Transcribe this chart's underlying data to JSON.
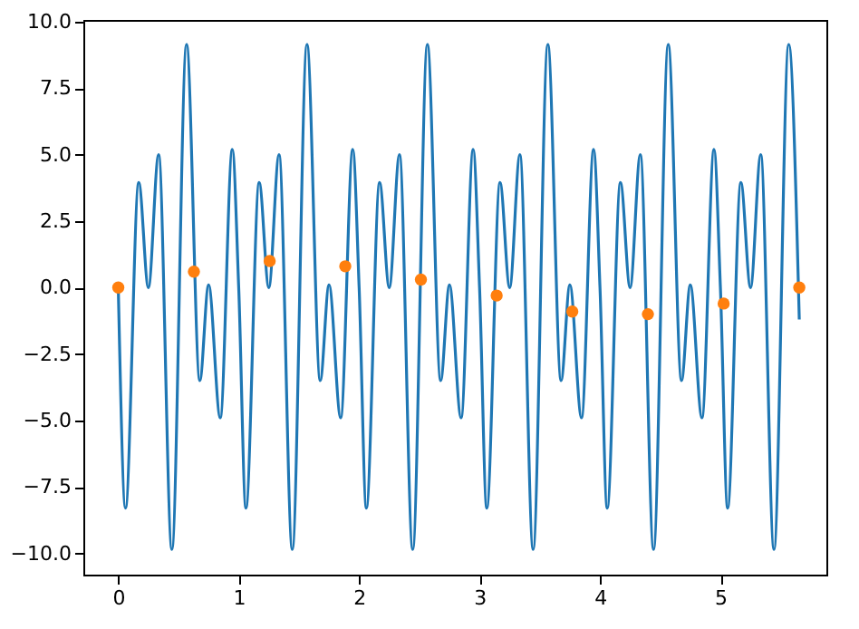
{
  "chart_data": {
    "type": "line",
    "xlim": [
      -0.29,
      5.88
    ],
    "ylim": [
      -10.8,
      10.07
    ],
    "xticks": [
      0,
      1,
      2,
      3,
      4,
      5
    ],
    "yticks": [
      {
        "value": -10,
        "label": "−10.0"
      },
      {
        "value": -7.5,
        "label": "−7.5"
      },
      {
        "value": -5,
        "label": "−5.0"
      },
      {
        "value": -2.5,
        "label": "−2.5"
      },
      {
        "value": 0,
        "label": "0.0"
      },
      {
        "value": 2.5,
        "label": "2.5"
      },
      {
        "value": 5,
        "label": "5.0"
      },
      {
        "value": 7.5,
        "label": "7.5"
      },
      {
        "value": 10,
        "label": "10.0"
      }
    ],
    "grid": false,
    "series": [
      {
        "color": "#1f77b4",
        "line_style": "solid",
        "marker": "none",
        "x": [
          0,
          0.06,
          0.17,
          0.25,
          0.335,
          0.445,
          0.567,
          0.677,
          0.75,
          0.847,
          0.947,
          1,
          1.06,
          1.17,
          1.25,
          1.335,
          1.445,
          1.567,
          1.677,
          1.75,
          1.847,
          1.947,
          2,
          2.06,
          2.17,
          2.25,
          2.335,
          2.445,
          2.567,
          2.677,
          2.75,
          2.847,
          2.947,
          3,
          3.06,
          3.17,
          3.25,
          3.335,
          3.445,
          3.567,
          3.677,
          3.75,
          3.847,
          3.947,
          4,
          4.06,
          4.17,
          4.25,
          4.335,
          4.445,
          4.567,
          4.677,
          4.75,
          4.847,
          4.947,
          5,
          5.06,
          5.17,
          5.25,
          5.335,
          5.445,
          5.567,
          5.655
        ],
        "values": [
          0,
          -8.3,
          3.95,
          0.0,
          5.0,
          -9.85,
          9.15,
          -3.5,
          0.1,
          -4.9,
          5.2,
          0,
          -8.3,
          3.95,
          0.0,
          5.0,
          -9.85,
          9.15,
          -3.5,
          0.1,
          -4.9,
          5.2,
          0,
          -8.3,
          3.95,
          0.0,
          5.0,
          -9.85,
          9.15,
          -3.5,
          0.1,
          -4.9,
          5.2,
          0,
          -8.3,
          3.95,
          0.0,
          5.0,
          -9.85,
          9.15,
          -3.5,
          0.1,
          -4.9,
          5.2,
          0,
          -8.3,
          3.95,
          0.0,
          5.0,
          -9.85,
          9.15,
          -3.5,
          0.1,
          -4.9,
          5.2,
          0,
          -8.3,
          3.95,
          0.0,
          5.0,
          -9.85,
          9.15,
          -1.2
        ]
      },
      {
        "type": "scatter",
        "color": "#ff7f0e",
        "marker": "circle",
        "x": [
          0,
          0.628,
          1.257,
          1.885,
          2.513,
          3.142,
          3.77,
          4.398,
          5.027,
          5.655
        ],
        "values": [
          0,
          0.6,
          1.0,
          0.8,
          0.3,
          -0.3,
          -0.9,
          -1.0,
          -0.6,
          0.0
        ]
      }
    ]
  }
}
